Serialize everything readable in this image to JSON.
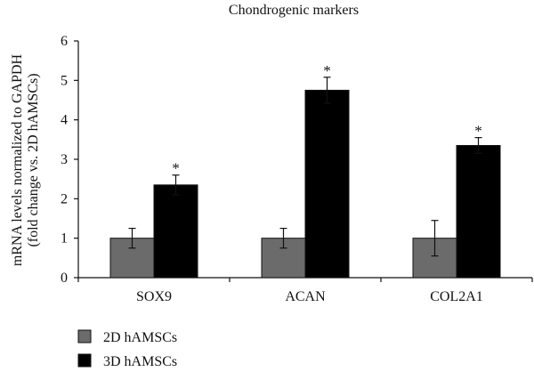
{
  "chart_data": {
    "type": "bar",
    "title": "Chondrogenic markers",
    "ylabel_line1": "mRNA levels normalized to GAPDH",
    "ylabel_line2": "(fold change vs. 2D hAMSCs)",
    "xlabel": "",
    "categories": [
      "SOX9",
      "ACAN",
      "COL2A1"
    ],
    "ylim": [
      0,
      6
    ],
    "yticks": [
      0,
      1,
      2,
      3,
      4,
      5,
      6
    ],
    "grid": false,
    "legend_position": "bottom-left",
    "series": [
      {
        "name": "2D hAMSCs",
        "color": "#6b6b6b",
        "values": [
          1.0,
          1.0,
          1.0
        ],
        "errors": [
          0.25,
          0.25,
          0.45
        ],
        "significance": [
          "",
          "",
          ""
        ]
      },
      {
        "name": "3D hAMSCs",
        "color": "#000000",
        "values": [
          2.35,
          4.75,
          3.35
        ],
        "errors": [
          0.25,
          0.33,
          0.2
        ],
        "significance": [
          "*",
          "*",
          "*"
        ]
      }
    ]
  }
}
